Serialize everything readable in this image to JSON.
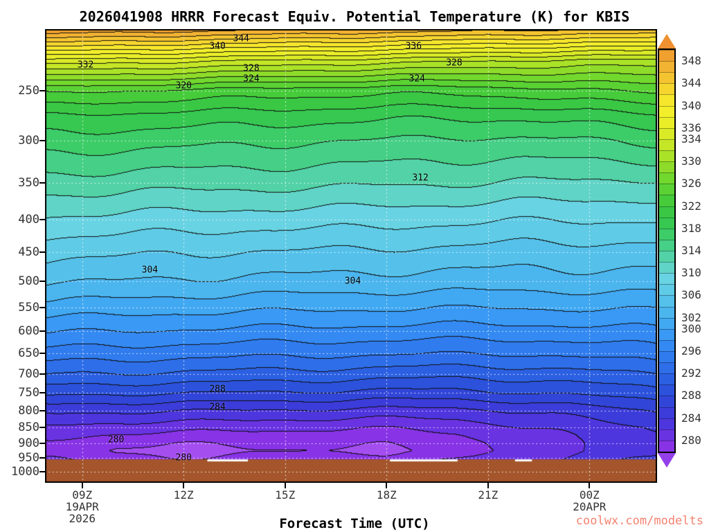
{
  "title": "2026041908 HRRR Forecast Equiv. Potential Temperature (K) for KBIS",
  "xlabel": "Forecast Time (UTC)",
  "watermark": {
    "text": "coolwx.com/modelts",
    "color": "#f4826e"
  },
  "chart_data": {
    "type": "heatmap",
    "title": "2026041908 HRRR Forecast Equiv. Potential Temperature (K) for KBIS",
    "units": "K",
    "contour_interval_K": 2,
    "x_axis": {
      "label": "Forecast Time (UTC)",
      "range_hours": [
        7.9,
        26.0
      ],
      "ticks": [
        {
          "label": "09Z",
          "t": 9
        },
        {
          "label": "12Z",
          "t": 12
        },
        {
          "label": "15Z",
          "t": 15
        },
        {
          "label": "18Z",
          "t": 18
        },
        {
          "label": "21Z",
          "t": 21
        },
        {
          "label": "00Z",
          "t": 24
        }
      ],
      "sub_labels": [
        {
          "t": 9,
          "lines": [
            "19APR",
            "2026"
          ]
        },
        {
          "t": 24,
          "lines": [
            "20APR"
          ]
        }
      ]
    },
    "y_axis": {
      "units": "hPa",
      "scale": "log",
      "range": [
        200,
        1040
      ],
      "ticks": [
        250,
        300,
        350,
        400,
        450,
        500,
        550,
        600,
        650,
        700,
        750,
        800,
        850,
        900,
        950,
        1000
      ]
    },
    "grid": {
      "times_utc_hours": [
        8,
        10,
        12,
        14,
        16,
        18,
        20,
        22,
        24,
        26
      ],
      "pressures_hPa": [
        200,
        225,
        250,
        275,
        300,
        350,
        400,
        450,
        500,
        550,
        600,
        650,
        700,
        750,
        800,
        850,
        875,
        900,
        925,
        950,
        1000
      ],
      "theta_e_K": [
        [
          350.1,
          349.6,
          349.1,
          348.6,
          348.1,
          347.6,
          347.1,
          346.6,
          346.1,
          346.1
        ],
        [
          335.1,
          334.6,
          334.1,
          333.6,
          333.1,
          332.6,
          332.1,
          331.6,
          331.1,
          331.1
        ],
        [
          324.6,
          324.1,
          323.6,
          323.2,
          322.9,
          322.6,
          322.7,
          323.1,
          323.9,
          324.4
        ],
        [
          319.6,
          319.4,
          319.1,
          318.9,
          318.7,
          318.4,
          318.2,
          318.4,
          318.9,
          319.4
        ],
        [
          317.1,
          316.9,
          316.6,
          316.4,
          316.1,
          315.9,
          315.6,
          315.6,
          315.9,
          316.4
        ],
        [
          313.1,
          312.9,
          312.7,
          312.6,
          312.5,
          312.2,
          312.1,
          311.8,
          311.7,
          311.6
        ],
        [
          309.6,
          309.4,
          309.1,
          308.9,
          308.9,
          308.6,
          308.4,
          308.1,
          308.1,
          308.1
        ],
        [
          306.6,
          306.4,
          306.1,
          305.9,
          305.8,
          305.6,
          305.4,
          305.1,
          305.1,
          305.1
        ],
        [
          304.2,
          304.0,
          303.7,
          303.5,
          303.4,
          303.2,
          303.1,
          303.1,
          303.1,
          303.2
        ],
        [
          301.2,
          301.0,
          300.7,
          300.5,
          300.4,
          300.2,
          300.1,
          300.1,
          300.2,
          300.3
        ],
        [
          298.2,
          298.0,
          297.7,
          297.5,
          297.4,
          297.2,
          297.1,
          297.1,
          297.3,
          297.6
        ],
        [
          295.2,
          295.0,
          294.7,
          294.5,
          294.4,
          294.2,
          294.1,
          294.1,
          294.6,
          295.1
        ],
        [
          292.1,
          291.9,
          291.6,
          291.4,
          291.2,
          290.9,
          290.7,
          290.9,
          291.4,
          292.1
        ],
        [
          288.6,
          288.3,
          288.1,
          287.9,
          287.7,
          287.4,
          287.4,
          287.9,
          288.6,
          289.1
        ],
        [
          284.6,
          284.3,
          284.1,
          283.9,
          283.7,
          283.4,
          283.4,
          284.1,
          285.1,
          286.1
        ],
        [
          281.6,
          281.1,
          280.9,
          280.6,
          280.4,
          280.2,
          280.6,
          281.9,
          283.1,
          284.1
        ],
        [
          280.6,
          279.7,
          279.4,
          279.2,
          279.1,
          279.0,
          279.7,
          281.1,
          282.7,
          283.7
        ],
        [
          279.7,
          278.4,
          278.2,
          278.4,
          278.5,
          278.3,
          279.1,
          280.7,
          282.4,
          283.4
        ],
        [
          279.3,
          277.7,
          277.3,
          277.6,
          277.9,
          277.6,
          278.7,
          280.7,
          282.4,
          283.4
        ],
        [
          280.1,
          278.4,
          278.1,
          278.6,
          279.1,
          278.7,
          279.7,
          281.1,
          283.1,
          284.1
        ],
        [
          281.6,
          280.1,
          279.7,
          280.2,
          280.7,
          280.2,
          281.2,
          282.4,
          283.9,
          285.1
        ]
      ]
    },
    "contour_labels": [
      {
        "text": "344",
        "t": 13.7,
        "p": 207
      },
      {
        "text": "340",
        "t": 13.0,
        "p": 213
      },
      {
        "text": "336",
        "t": 18.8,
        "p": 213
      },
      {
        "text": "332",
        "t": 9.1,
        "p": 228
      },
      {
        "text": "328",
        "t": 14.0,
        "p": 231
      },
      {
        "text": "324",
        "t": 14.0,
        "p": 240
      },
      {
        "text": "328",
        "t": 20.0,
        "p": 226
      },
      {
        "text": "324",
        "t": 18.9,
        "p": 240
      },
      {
        "text": "320",
        "t": 12.0,
        "p": 246
      },
      {
        "text": "312",
        "t": 19.0,
        "p": 344
      },
      {
        "text": "304",
        "t": 11.0,
        "p": 480
      },
      {
        "text": "304",
        "t": 17.0,
        "p": 500
      },
      {
        "text": "288",
        "t": 13.0,
        "p": 740
      },
      {
        "text": "284",
        "t": 13.0,
        "p": 790
      },
      {
        "text": "280",
        "t": 10.0,
        "p": 890
      },
      {
        "text": "280",
        "t": 12.0,
        "p": 950
      }
    ],
    "surface": {
      "pressure_top_hPa": 955,
      "color": "#a4552b",
      "gaps_t": [
        [
          12.7,
          13.9
        ],
        [
          18.1,
          20.1
        ],
        [
          21.8,
          22.3
        ]
      ]
    },
    "gridlines": {
      "color": "#ffffff"
    },
    "colormap": {
      "start": 276,
      "step": 2,
      "colors": [
        "#a44ef0",
        "#8833e6",
        "#6933e2",
        "#4e36de",
        "#3c3cda",
        "#3146d8",
        "#2c52dc",
        "#2c60e2",
        "#2e6ee8",
        "#307cee",
        "#348af2",
        "#3999f4",
        "#41a8f2",
        "#4bb5ee",
        "#55c1ea",
        "#5fcbe6",
        "#68d3e2",
        "#60d4c6",
        "#52d2a6",
        "#46cf86",
        "#3ccc68",
        "#36c850",
        "#3ac844",
        "#46cc3a",
        "#5ad233",
        "#72d82d",
        "#8edc29",
        "#aae227",
        "#c4e626",
        "#d9ea26",
        "#e9ee28",
        "#f2ee2a",
        "#f6e62c",
        "#f6d62e",
        "#f4c430",
        "#f2b232",
        "#f0a02e"
      ]
    },
    "colorbar": {
      "min": 278,
      "max": 350,
      "tick_labels": [
        348,
        344,
        340,
        336,
        334,
        330,
        326,
        322,
        318,
        314,
        310,
        306,
        302,
        300,
        296,
        292,
        288,
        284,
        280
      ],
      "arrow_top_color": "#ef9130",
      "arrow_bottom_color": "#9440ea"
    }
  }
}
